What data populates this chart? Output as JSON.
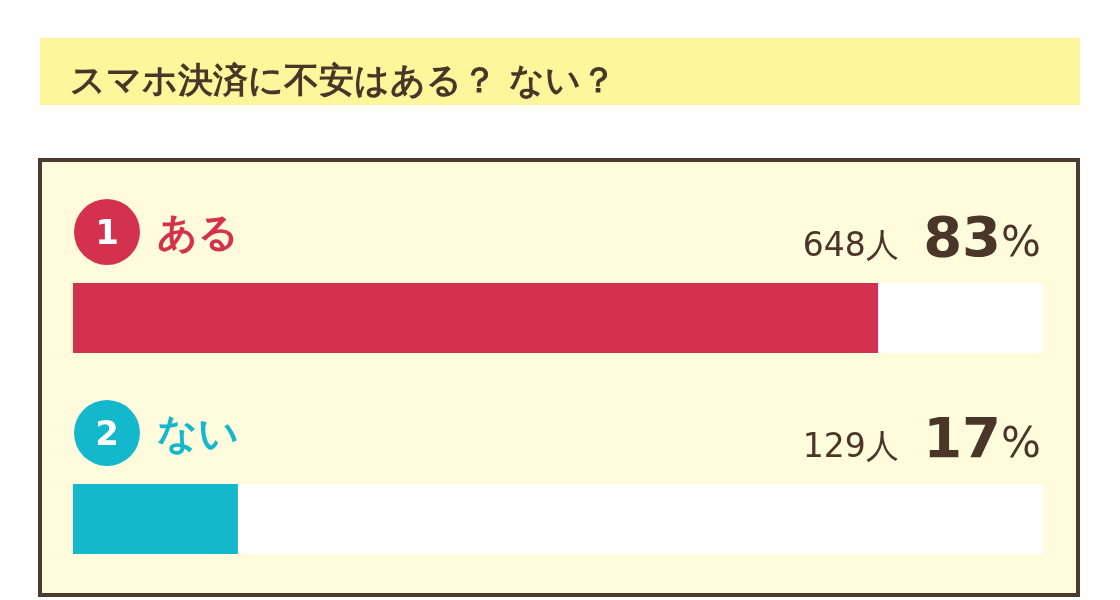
{
  "chart_data": {
    "type": "bar",
    "orientation": "horizontal",
    "title": "スマホ決済に不安はある？ ない？",
    "categories": [
      "ある",
      "ない"
    ],
    "values": [
      83,
      17
    ],
    "colors": [
      "#d4314f",
      "#13b8cc"
    ],
    "value_labels": [
      "648人 83%",
      "129人 17%"
    ],
    "annotations": [
      "1",
      "2"
    ]
  }
}
